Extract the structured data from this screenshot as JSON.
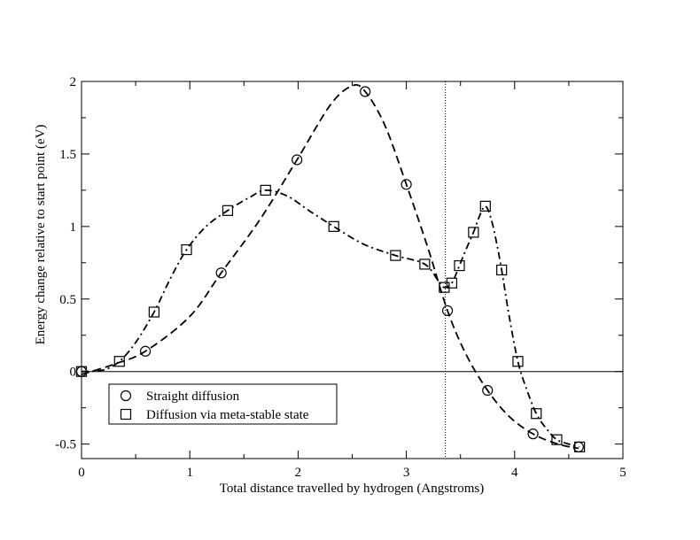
{
  "chart_data": {
    "type": "scatter",
    "xlabel": "Total distance travelled by hydrogen (Angstroms)",
    "ylabel": "Energy change relative to start point (eV)",
    "xlim": [
      0,
      5
    ],
    "ylim": [
      -0.6,
      2.0
    ],
    "xticks": [
      0,
      1,
      2,
      3,
      4,
      5
    ],
    "yticks": [
      -0.5,
      0,
      0.5,
      1,
      1.5,
      2
    ],
    "xtick_labels": [
      "0",
      "1",
      "2",
      "3",
      "4",
      "5"
    ],
    "ytick_labels": [
      "-0.5",
      "0",
      "0.5",
      "1",
      "1.5",
      "2"
    ],
    "reference_lines": {
      "horizontal_y": 0,
      "vertical_x": 3.36
    },
    "legend_position": "bottom-left",
    "series": [
      {
        "name": "Straight diffusion",
        "marker": "circle",
        "line_style": "dashed",
        "points": [
          {
            "x": 0.0,
            "y": 0.0
          },
          {
            "x": 0.59,
            "y": 0.14
          },
          {
            "x": 1.29,
            "y": 0.68
          },
          {
            "x": 1.99,
            "y": 1.46
          },
          {
            "x": 2.62,
            "y": 1.93
          },
          {
            "x": 3.0,
            "y": 1.29
          },
          {
            "x": 3.38,
            "y": 0.42
          },
          {
            "x": 3.75,
            "y": -0.13
          },
          {
            "x": 4.17,
            "y": -0.43
          },
          {
            "x": 4.59,
            "y": -0.52
          }
        ],
        "curve": [
          {
            "x": 0.0,
            "y": -0.02
          },
          {
            "x": 0.3,
            "y": 0.05
          },
          {
            "x": 0.59,
            "y": 0.14
          },
          {
            "x": 1.0,
            "y": 0.38
          },
          {
            "x": 1.29,
            "y": 0.68
          },
          {
            "x": 1.65,
            "y": 1.05
          },
          {
            "x": 1.99,
            "y": 1.46
          },
          {
            "x": 2.3,
            "y": 1.84
          },
          {
            "x": 2.5,
            "y": 1.97
          },
          {
            "x": 2.62,
            "y": 1.93
          },
          {
            "x": 2.8,
            "y": 1.7
          },
          {
            "x": 3.0,
            "y": 1.29
          },
          {
            "x": 3.2,
            "y": 0.85
          },
          {
            "x": 3.38,
            "y": 0.42
          },
          {
            "x": 3.55,
            "y": 0.12
          },
          {
            "x": 3.75,
            "y": -0.13
          },
          {
            "x": 3.95,
            "y": -0.31
          },
          {
            "x": 4.17,
            "y": -0.43
          },
          {
            "x": 4.4,
            "y": -0.5
          },
          {
            "x": 4.59,
            "y": -0.53
          }
        ]
      },
      {
        "name": "Diffusion via meta-stable state",
        "marker": "square",
        "line_style": "dash-dot",
        "points": [
          {
            "x": 0.0,
            "y": 0.0
          },
          {
            "x": 0.35,
            "y": 0.07
          },
          {
            "x": 0.67,
            "y": 0.41
          },
          {
            "x": 0.97,
            "y": 0.84
          },
          {
            "x": 1.35,
            "y": 1.11
          },
          {
            "x": 1.7,
            "y": 1.25
          },
          {
            "x": 2.33,
            "y": 1.0
          },
          {
            "x": 2.9,
            "y": 0.8
          },
          {
            "x": 3.17,
            "y": 0.74
          },
          {
            "x": 3.35,
            "y": 0.58
          },
          {
            "x": 3.42,
            "y": 0.61
          },
          {
            "x": 3.49,
            "y": 0.73
          },
          {
            "x": 3.62,
            "y": 0.96
          },
          {
            "x": 3.73,
            "y": 1.14
          },
          {
            "x": 3.88,
            "y": 0.7
          },
          {
            "x": 4.03,
            "y": 0.07
          },
          {
            "x": 4.2,
            "y": -0.29
          },
          {
            "x": 4.39,
            "y": -0.47
          },
          {
            "x": 4.6,
            "y": -0.52
          }
        ],
        "curve": [
          {
            "x": 0.0,
            "y": 0.0
          },
          {
            "x": 0.2,
            "y": 0.01
          },
          {
            "x": 0.35,
            "y": 0.07
          },
          {
            "x": 0.5,
            "y": 0.2
          },
          {
            "x": 0.67,
            "y": 0.41
          },
          {
            "x": 0.82,
            "y": 0.64
          },
          {
            "x": 0.97,
            "y": 0.84
          },
          {
            "x": 1.15,
            "y": 1.0
          },
          {
            "x": 1.35,
            "y": 1.11
          },
          {
            "x": 1.55,
            "y": 1.2
          },
          {
            "x": 1.7,
            "y": 1.25
          },
          {
            "x": 1.9,
            "y": 1.21
          },
          {
            "x": 2.1,
            "y": 1.11
          },
          {
            "x": 2.33,
            "y": 1.0
          },
          {
            "x": 2.6,
            "y": 0.88
          },
          {
            "x": 2.9,
            "y": 0.8
          },
          {
            "x": 3.17,
            "y": 0.74
          },
          {
            "x": 3.3,
            "y": 0.62
          },
          {
            "x": 3.35,
            "y": 0.58
          },
          {
            "x": 3.42,
            "y": 0.61
          },
          {
            "x": 3.49,
            "y": 0.73
          },
          {
            "x": 3.55,
            "y": 0.84
          },
          {
            "x": 3.62,
            "y": 0.96
          },
          {
            "x": 3.68,
            "y": 1.08
          },
          {
            "x": 3.73,
            "y": 1.14
          },
          {
            "x": 3.78,
            "y": 1.06
          },
          {
            "x": 3.83,
            "y": 0.9
          },
          {
            "x": 3.88,
            "y": 0.7
          },
          {
            "x": 3.95,
            "y": 0.38
          },
          {
            "x": 4.03,
            "y": 0.07
          },
          {
            "x": 4.1,
            "y": -0.1
          },
          {
            "x": 4.2,
            "y": -0.29
          },
          {
            "x": 4.3,
            "y": -0.4
          },
          {
            "x": 4.39,
            "y": -0.47
          },
          {
            "x": 4.5,
            "y": -0.5
          },
          {
            "x": 4.6,
            "y": -0.52
          }
        ]
      }
    ]
  }
}
